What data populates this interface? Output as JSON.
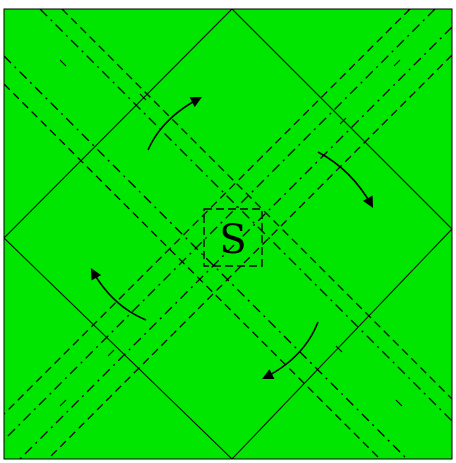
{
  "diagram": {
    "colors": {
      "paper": "#00e600",
      "line": "#000000"
    },
    "lines": {
      "mountain_fold": "dash-dot",
      "valley_fold": "dashed",
      "crease": "solid"
    },
    "center_label": "S",
    "arrows": [
      {
        "name": "arrow-upper-left",
        "direction": "rotate"
      },
      {
        "name": "arrow-upper-right",
        "direction": "rotate"
      },
      {
        "name": "arrow-lower-left",
        "direction": "rotate"
      },
      {
        "name": "arrow-lower-right",
        "direction": "rotate"
      }
    ]
  }
}
